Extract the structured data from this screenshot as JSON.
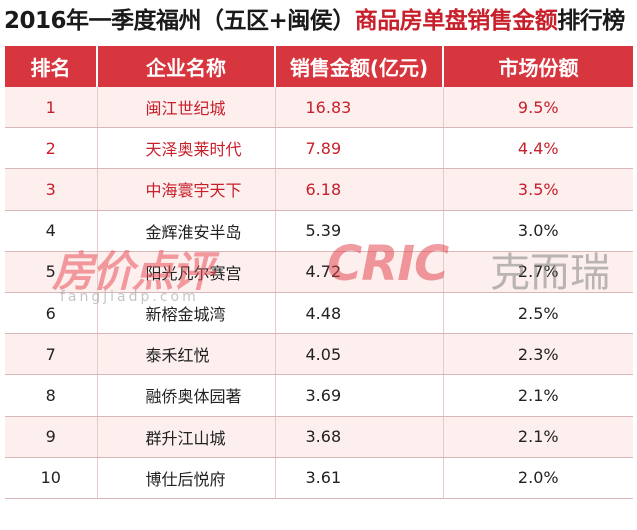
{
  "title": {
    "part1": "2016年一季度福州（五区+闽侯）",
    "part2": "商品房单盘销售金额",
    "part3": "排行榜"
  },
  "columns": [
    "排名",
    "企业名称",
    "销售金额(亿元)",
    "市场份额"
  ],
  "rows": [
    {
      "rank": "1",
      "name": "闽江世纪城",
      "sales": "16.83",
      "share": "9.5%"
    },
    {
      "rank": "2",
      "name": "天泽奥莱时代",
      "sales": "7.89",
      "share": "4.4%"
    },
    {
      "rank": "3",
      "name": "中海寰宇天下",
      "sales": "6.18",
      "share": "3.5%"
    },
    {
      "rank": "4",
      "name": "金辉淮安半岛",
      "sales": "5.39",
      "share": "3.0%"
    },
    {
      "rank": "5",
      "name": "阳光凡尔赛宫",
      "sales": "4.72",
      "share": "2.7%"
    },
    {
      "rank": "6",
      "name": "新榕金城湾",
      "sales": "4.48",
      "share": "2.5%"
    },
    {
      "rank": "7",
      "name": "泰禾红悦",
      "sales": "4.05",
      "share": "2.3%"
    },
    {
      "rank": "8",
      "name": "融侨奥体园著",
      "sales": "3.69",
      "share": "2.1%"
    },
    {
      "rank": "9",
      "name": "群升江山城",
      "sales": "3.68",
      "share": "2.1%"
    },
    {
      "rank": "10",
      "name": "博仕后悦府",
      "sales": "3.61",
      "share": "2.0%"
    }
  ],
  "highlight_color": "#c8202b",
  "header_color": "#d8363f",
  "watermark": {
    "left": "房价点评",
    "left_sub": "fangjiadp.com",
    "right": "CRIC",
    "right_cn": "克而瑞"
  }
}
